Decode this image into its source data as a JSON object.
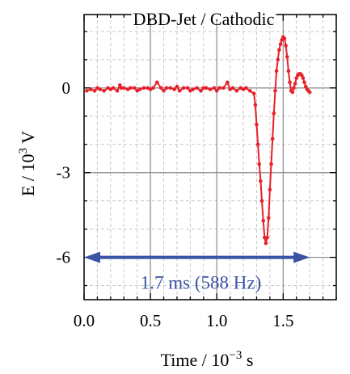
{
  "chart_data": {
    "type": "line",
    "title": "DBD-Jet / Cathodic",
    "xlabel_main": "Time / 10",
    "xlabel_exp": "−3",
    "xlabel_unit": " s",
    "ylabel_main": "E / 10",
    "ylabel_exp": "3",
    "ylabel_unit": " V",
    "xlim": [
      0.0,
      1.9
    ],
    "ylim": [
      -7.5,
      2.6
    ],
    "x_ticks": [
      0.0,
      0.5,
      1.0,
      1.5
    ],
    "x_tick_labels": [
      "0.0",
      "0.5",
      "1.0",
      "1.5"
    ],
    "y_ticks": [
      0,
      -3,
      -6
    ],
    "y_tick_labels": [
      "0",
      "-3",
      "-6"
    ],
    "grid": true,
    "series": [
      {
        "color": "#e8202a",
        "x": [
          0.02,
          0.05,
          0.08,
          0.1,
          0.12,
          0.15,
          0.18,
          0.2,
          0.22,
          0.25,
          0.27,
          0.28,
          0.3,
          0.33,
          0.35,
          0.38,
          0.4,
          0.42,
          0.45,
          0.48,
          0.5,
          0.52,
          0.55,
          0.58,
          0.6,
          0.62,
          0.65,
          0.68,
          0.7,
          0.72,
          0.75,
          0.78,
          0.8,
          0.82,
          0.85,
          0.88,
          0.9,
          0.92,
          0.95,
          0.98,
          1.0,
          1.02,
          1.05,
          1.08,
          1.1,
          1.12,
          1.15,
          1.18,
          1.2,
          1.22,
          1.25,
          1.28,
          1.29,
          1.3,
          1.31,
          1.32,
          1.33,
          1.34,
          1.35,
          1.36,
          1.37,
          1.38,
          1.39,
          1.4,
          1.41,
          1.42,
          1.43,
          1.44,
          1.45,
          1.46,
          1.47,
          1.48,
          1.49,
          1.5,
          1.51,
          1.52,
          1.53,
          1.54,
          1.55,
          1.56,
          1.57,
          1.58,
          1.59,
          1.6,
          1.61,
          1.62,
          1.63,
          1.64,
          1.65,
          1.66,
          1.67,
          1.68,
          1.69,
          1.7
        ],
        "y": [
          -0.1,
          -0.05,
          -0.1,
          0.0,
          -0.05,
          -0.1,
          0.0,
          -0.05,
          0.0,
          -0.1,
          0.1,
          0.0,
          0.0,
          -0.05,
          0.0,
          0.0,
          -0.1,
          -0.05,
          0.0,
          0.0,
          -0.05,
          0.0,
          0.2,
          0.0,
          -0.1,
          0.0,
          0.0,
          -0.05,
          0.05,
          -0.1,
          0.0,
          0.0,
          -0.1,
          -0.05,
          0.0,
          -0.1,
          0.0,
          0.0,
          -0.05,
          0.0,
          -0.1,
          0.0,
          0.0,
          0.2,
          -0.05,
          0.0,
          -0.1,
          0.0,
          -0.05,
          0.0,
          -0.1,
          -0.2,
          -0.6,
          -1.3,
          -2.0,
          -2.7,
          -3.3,
          -4.0,
          -4.7,
          -5.3,
          -5.5,
          -5.3,
          -4.6,
          -3.6,
          -2.7,
          -1.8,
          -0.9,
          -0.1,
          0.6,
          1.0,
          1.35,
          1.55,
          1.7,
          1.8,
          1.75,
          1.5,
          1.1,
          0.6,
          0.2,
          -0.1,
          -0.15,
          0.0,
          0.15,
          0.35,
          0.45,
          0.5,
          0.5,
          0.45,
          0.35,
          0.2,
          0.05,
          -0.05,
          -0.1,
          -0.15
        ]
      }
    ],
    "annotation": {
      "text": "1.7 ms  (588 Hz)",
      "arrow_from": 0.0,
      "arrow_to": 1.7,
      "arrow_y": -6.0,
      "color": "#3a53a4"
    }
  }
}
